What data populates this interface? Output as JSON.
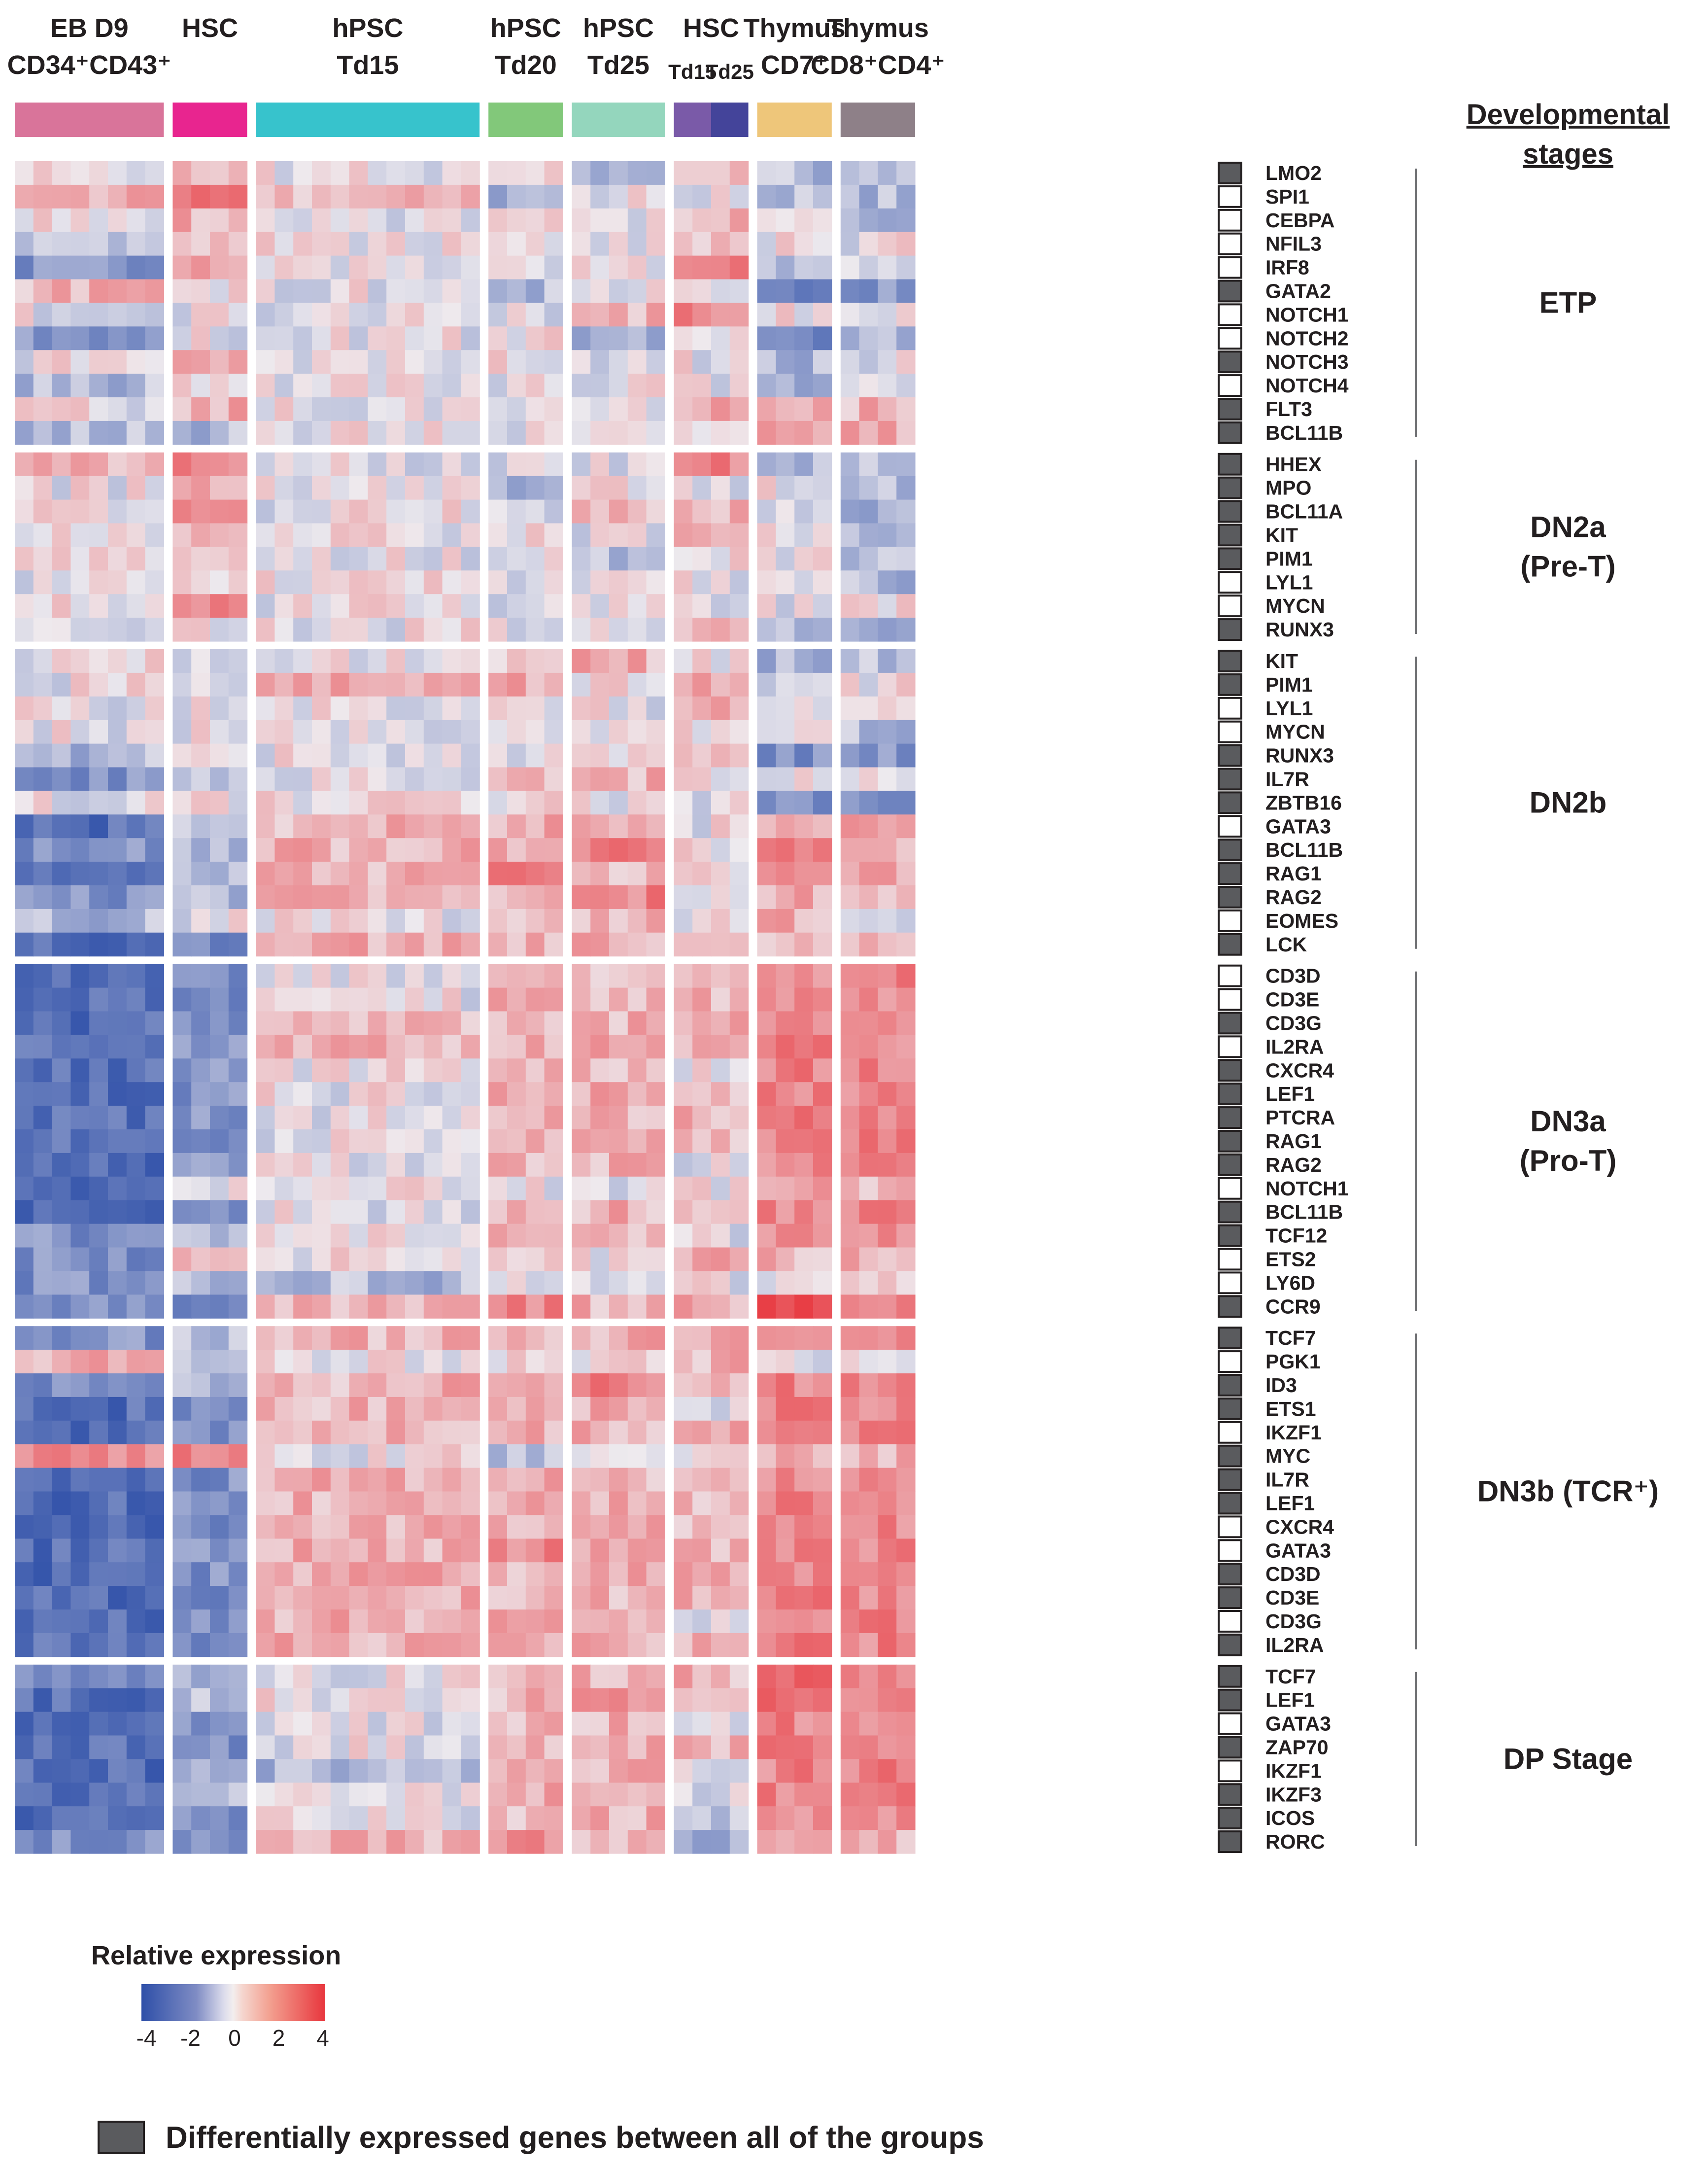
{
  "chart_data": {
    "type": "heatmap",
    "title": "",
    "column_groups": [
      {
        "line1": "EB D9",
        "line2": "CD34⁺CD43⁺",
        "n_cols": 8,
        "color": "#d9749a"
      },
      {
        "line1": "HSC",
        "line2": "",
        "n_cols": 4,
        "color": "#e8258f"
      },
      {
        "line1": "hPSC",
        "line2": "Td15",
        "n_cols": 12,
        "color": "#37c3cc"
      },
      {
        "line1": "hPSC",
        "line2": "Td20",
        "n_cols": 4,
        "color": "#82c87a"
      },
      {
        "line1": "hPSC",
        "line2": "Td25",
        "n_cols": 5,
        "color": "#94d6bd"
      },
      {
        "line1": "HSC",
        "line2": "",
        "n_cols": 4,
        "color": "#7a5aa8",
        "sub": [
          {
            "label": "Td15",
            "n_cols": 2,
            "color": "#7a5aa8"
          },
          {
            "label": "Td25",
            "n_cols": 2,
            "color": "#44449a"
          }
        ]
      },
      {
        "line1": "Thymus",
        "line2": "CD7⁺",
        "n_cols": 4,
        "color": "#eec67a"
      },
      {
        "line1": "Thymus",
        "line2": "CD8⁺CD4⁺",
        "n_cols": 4,
        "color": "#8e8088"
      }
    ],
    "row_blocks": [
      {
        "stage": [
          "ETP"
        ],
        "genes": [
          "LMO2",
          "SPI1",
          "CEBPA",
          "NFIL3",
          "IRF8",
          "GATA2",
          "NOTCH1",
          "NOTCH2",
          "NOTCH3",
          "NOTCH4",
          "FLT3",
          "BCL11B"
        ],
        "de": [
          1,
          0,
          0,
          0,
          0,
          1,
          0,
          0,
          1,
          0,
          1,
          1
        ]
      },
      {
        "stage": [
          "DN2a",
          "(Pre-T)"
        ],
        "genes": [
          "HHEX",
          "MPO",
          "BCL11A",
          "KIT",
          "PIM1",
          "LYL1",
          "MYCN",
          "RUNX3"
        ],
        "de": [
          1,
          1,
          1,
          1,
          1,
          0,
          0,
          1
        ]
      },
      {
        "stage": [
          "DN2b"
        ],
        "genes": [
          "KIT",
          "PIM1",
          "LYL1",
          "MYCN",
          "RUNX3",
          "IL7R",
          "ZBTB16",
          "GATA3",
          "BCL11B",
          "RAG1",
          "RAG2",
          "EOMES",
          "LCK"
        ],
        "de": [
          1,
          1,
          0,
          0,
          1,
          1,
          1,
          0,
          1,
          1,
          1,
          0,
          1
        ]
      },
      {
        "stage": [
          "DN3a",
          "(Pro-T)"
        ],
        "genes": [
          "CD3D",
          "CD3E",
          "CD3G",
          "IL2RA",
          "CXCR4",
          "LEF1",
          "PTCRA",
          "RAG1",
          "RAG2",
          "NOTCH1",
          "BCL11B",
          "TCF12",
          "ETS2",
          "LY6D",
          "CCR9"
        ],
        "de": [
          0,
          0,
          1,
          0,
          1,
          1,
          1,
          1,
          1,
          0,
          1,
          1,
          0,
          0,
          1
        ]
      },
      {
        "stage": [
          "DN3b (TCR⁺)"
        ],
        "genes": [
          "TCF7",
          "PGK1",
          "ID3",
          "ETS1",
          "IKZF1",
          "MYC",
          "IL7R",
          "LEF1",
          "CXCR4",
          "GATA3",
          "CD3D",
          "CD3E",
          "CD3G",
          "IL2RA"
        ],
        "de": [
          1,
          0,
          1,
          1,
          0,
          1,
          1,
          1,
          0,
          0,
          1,
          1,
          0,
          1
        ]
      },
      {
        "stage": [
          "DP Stage"
        ],
        "genes": [
          "TCF7",
          "LEF1",
          "GATA3",
          "ZAP70",
          "IKZF1",
          "IKZF3",
          "ICOS",
          "RORC"
        ],
        "de": [
          1,
          1,
          0,
          1,
          0,
          1,
          1,
          1
        ]
      }
    ],
    "group_means": [
      [
        [
          0,
          1,
          0,
          -1,
          -2,
          1,
          0,
          -2,
          0,
          -1,
          0,
          -1
        ],
        [
          1,
          2,
          1,
          1,
          1,
          0,
          0,
          0,
          1,
          0,
          1,
          -1
        ],
        [
          0,
          1,
          0,
          0,
          0,
          0,
          0,
          0,
          0,
          0,
          0,
          0
        ],
        [
          0,
          -1,
          0,
          0,
          0,
          -1,
          0,
          0,
          0,
          0,
          0,
          0
        ],
        [
          -1,
          0,
          0,
          0,
          0,
          0,
          1,
          -1,
          0,
          0,
          0,
          0
        ],
        [
          1,
          0,
          1,
          1,
          2,
          0,
          2,
          0,
          0,
          0,
          1,
          0
        ],
        [
          -1,
          -1,
          0,
          0,
          -1,
          -3,
          0,
          -2,
          -1,
          -1,
          1,
          1
        ],
        [
          -1,
          -1,
          -1,
          0,
          0,
          -2,
          0,
          -1,
          0,
          0,
          1,
          1
        ]
      ],
      [
        [
          1,
          0,
          0,
          0,
          0,
          0,
          0,
          0
        ],
        [
          2,
          1,
          2,
          1,
          1,
          0,
          2,
          0
        ],
        [
          0,
          0,
          0,
          0,
          0,
          0,
          0,
          0
        ],
        [
          0,
          -1,
          0,
          0,
          0,
          0,
          0,
          0
        ],
        [
          0,
          0,
          1,
          0,
          -1,
          0,
          0,
          0
        ],
        [
          2,
          0,
          1,
          1,
          0,
          0,
          0,
          1
        ],
        [
          -1,
          0,
          0,
          0,
          0,
          0,
          0,
          -1
        ],
        [
          -1,
          -1,
          -1,
          -1,
          -1,
          -1,
          0,
          -1
        ]
      ],
      [
        [
          0,
          0,
          0,
          0,
          -1,
          -2,
          0,
          -3,
          -2,
          -3,
          -2,
          -1,
          -3
        ],
        [
          0,
          0,
          0,
          0,
          0,
          -1,
          0,
          -1,
          -1,
          -1,
          -1,
          0,
          -2
        ],
        [
          0,
          1,
          0,
          0,
          0,
          0,
          0,
          1,
          1,
          1,
          1,
          0,
          1
        ],
        [
          0,
          1,
          0,
          0,
          0,
          1,
          0,
          1,
          1,
          2,
          1,
          1,
          1
        ],
        [
          1,
          0,
          0,
          0,
          0,
          1,
          0,
          1,
          2,
          1,
          2,
          1,
          1
        ],
        [
          0,
          1,
          1,
          0,
          1,
          0,
          0,
          0,
          0,
          0,
          0,
          0,
          0
        ],
        [
          -1,
          0,
          0,
          0,
          -2,
          0,
          -2,
          1,
          2,
          2,
          1,
          1,
          1
        ],
        [
          -1,
          0,
          0,
          -1,
          -2,
          0,
          -2,
          1,
          1,
          1,
          1,
          0,
          1
        ]
      ],
      [
        [
          -3,
          -3,
          -3,
          -3,
          -3,
          -3,
          -3,
          -3,
          -3,
          -3,
          -3,
          -2,
          -2,
          -2,
          -2
        ],
        [
          -2,
          -2,
          -2,
          -2,
          -2,
          -2,
          -2,
          -2,
          -2,
          0,
          -2,
          -1,
          1,
          -1,
          -2
        ],
        [
          0,
          0,
          1,
          1,
          0,
          0,
          0,
          0,
          0,
          0,
          0,
          0,
          0,
          -1,
          1
        ],
        [
          1,
          1,
          1,
          1,
          1,
          1,
          1,
          1,
          1,
          0,
          1,
          1,
          0,
          0,
          2
        ],
        [
          1,
          1,
          1,
          1,
          1,
          1,
          1,
          1,
          1,
          0,
          1,
          1,
          0,
          0,
          1
        ],
        [
          1,
          1,
          1,
          1,
          0,
          1,
          1,
          1,
          0,
          0,
          1,
          0,
          1,
          0,
          1
        ],
        [
          2,
          2,
          2,
          2,
          2,
          2,
          2,
          2,
          2,
          1,
          2,
          2,
          1,
          0,
          3
        ],
        [
          2,
          2,
          2,
          2,
          2,
          2,
          2,
          2,
          2,
          1,
          2,
          2,
          1,
          0,
          2
        ]
      ],
      [
        [
          -2,
          1,
          -2,
          -3,
          -3,
          2,
          -3,
          -3,
          -3,
          -3,
          -3,
          -3,
          -3,
          -3
        ],
        [
          -1,
          -1,
          -1,
          -2,
          -2,
          2,
          -2,
          -2,
          -2,
          -2,
          -2,
          -2,
          -2,
          -2
        ],
        [
          1,
          0,
          1,
          1,
          1,
          0,
          1,
          1,
          1,
          1,
          1,
          1,
          1,
          1
        ],
        [
          1,
          0,
          1,
          1,
          1,
          -1,
          1,
          1,
          1,
          2,
          1,
          1,
          1,
          1
        ],
        [
          1,
          0,
          2,
          1,
          1,
          0,
          1,
          1,
          1,
          1,
          1,
          1,
          1,
          1
        ],
        [
          1,
          1,
          1,
          0,
          1,
          0,
          1,
          1,
          1,
          1,
          1,
          1,
          0,
          1
        ],
        [
          2,
          0,
          2,
          2,
          2,
          1,
          2,
          2,
          2,
          2,
          2,
          2,
          2,
          2
        ],
        [
          2,
          0,
          2,
          2,
          2,
          1,
          2,
          2,
          2,
          2,
          2,
          2,
          2,
          2
        ]
      ],
      [
        [
          -2,
          -3,
          -3,
          -3,
          -3,
          -3,
          -3,
          -2
        ],
        [
          -1,
          -1,
          -2,
          -2,
          -1,
          -1,
          -2,
          -2
        ],
        [
          0,
          0,
          0,
          0,
          -1,
          0,
          0,
          1
        ],
        [
          1,
          1,
          1,
          1,
          1,
          1,
          1,
          2
        ],
        [
          1,
          2,
          1,
          1,
          1,
          1,
          1,
          1
        ],
        [
          1,
          1,
          0,
          1,
          0,
          0,
          -1,
          -1
        ],
        [
          3,
          3,
          2,
          2,
          2,
          2,
          2,
          1
        ],
        [
          2,
          2,
          2,
          2,
          2,
          2,
          2,
          1
        ]
      ]
    ],
    "value_range": [
      -4,
      4
    ],
    "colorscale": [
      "#2e4fa8",
      "#e9ebf0",
      "#e8373e"
    ],
    "developmental_stages_title": "Developmental stages",
    "legend": {
      "title": "Relative expression",
      "ticks": [
        "-4",
        "-2",
        "0",
        "2",
        "4"
      ]
    }
  },
  "footnote": "Differentially expressed genes between all of the groups"
}
